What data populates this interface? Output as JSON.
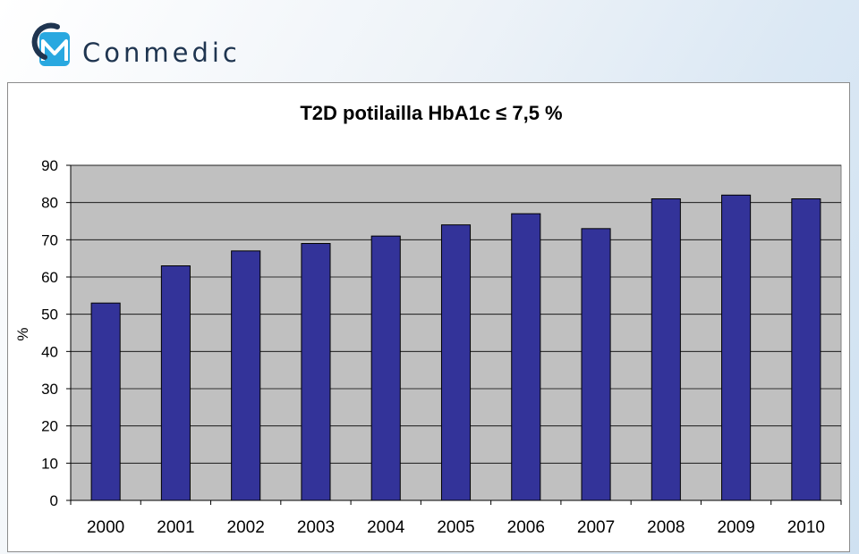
{
  "brand": {
    "name": "Conmedic",
    "logo_mark_color": "#29a8e0",
    "logo_arc_color": "#1f3550"
  },
  "chart_data": {
    "type": "bar",
    "title": "T2D potilailla HbA1c  ≤ 7,5 %",
    "ylabel": "%",
    "xlabel": "",
    "categories": [
      "2000",
      "2001",
      "2002",
      "2003",
      "2004",
      "2005",
      "2006",
      "2007",
      "2008",
      "2009",
      "2010"
    ],
    "values": [
      53,
      63,
      67,
      69,
      71,
      74,
      77,
      73,
      81,
      82,
      81
    ],
    "ylim": [
      0,
      90
    ],
    "yticks": [
      0,
      10,
      20,
      30,
      40,
      50,
      60,
      70,
      80,
      90
    ],
    "grid": true,
    "bar_color": "#333399",
    "plot_background": "#c0c0c0"
  }
}
